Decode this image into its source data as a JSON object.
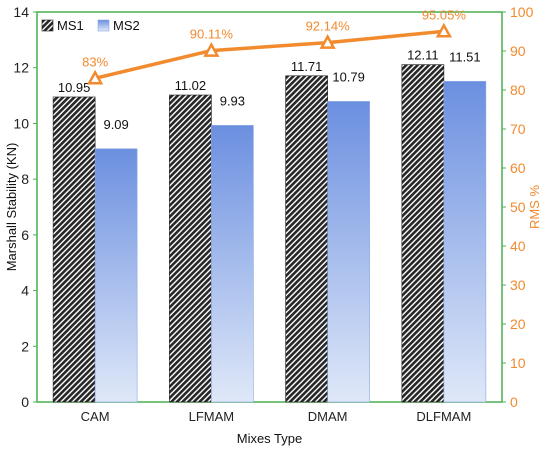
{
  "chart_data": {
    "type": "bar",
    "categories": [
      "CAM",
      "LFMAM",
      "DMAM",
      "DLFMAM"
    ],
    "xlabel": "Mixes Type",
    "ylabel": "Marshall Stability (KN)",
    "y2label": "RMS %",
    "ylim": [
      0,
      14
    ],
    "y2lim": [
      0,
      100
    ],
    "yticks": [
      "0",
      "2",
      "4",
      "6",
      "8",
      "10",
      "12",
      "14"
    ],
    "y2ticks": [
      "0",
      "10",
      "20",
      "30",
      "40",
      "50",
      "60",
      "70",
      "80",
      "90",
      "100"
    ],
    "series": [
      {
        "name": "MS1",
        "kind": "bar",
        "values": [
          10.95,
          11.02,
          11.71,
          12.11
        ],
        "labels": [
          "10.95",
          "11.02",
          "11.71",
          "12.11"
        ]
      },
      {
        "name": "MS2",
        "kind": "bar",
        "values": [
          9.09,
          9.93,
          10.79,
          11.51
        ],
        "labels": [
          "9.09",
          "9.93",
          "10.79",
          "11.51"
        ]
      },
      {
        "kind": "line",
        "axis": "right",
        "values": [
          83,
          90.11,
          92.14,
          95.05
        ],
        "labels": [
          "83%",
          "90.11%",
          "92.14%",
          "95.05%"
        ]
      }
    ],
    "legend": "top-left",
    "colors": {
      "ms1_bar": "#2a2a2a",
      "ms2_top": "#6b8fe0",
      "ms2_bottom": "#dfe8f8",
      "line": "#f28a2e",
      "right_axis": "#f28a2e",
      "frame": "#4caf50"
    }
  }
}
